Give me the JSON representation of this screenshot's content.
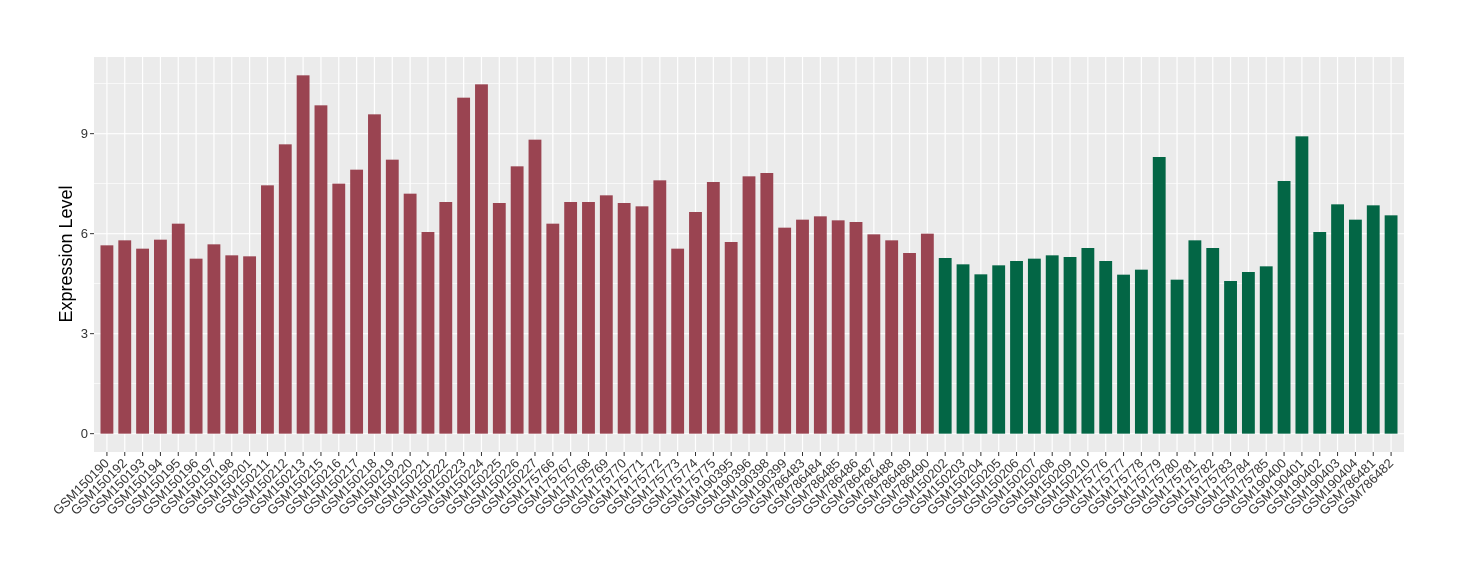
{
  "chart_data": {
    "type": "bar",
    "title": "",
    "xlabel": "",
    "ylabel": "Expression Level",
    "ylim": [
      -0.55,
      11.3
    ],
    "yticks": [
      0,
      3,
      6,
      9
    ],
    "grid": true,
    "legend": "none",
    "colors": {
      "group1": "#9A4451",
      "group2": "#036645",
      "panel": "#EBEBEB",
      "grid": "#FFFFFF"
    },
    "categories": [
      "GSM150190",
      "GSM150192",
      "GSM150193",
      "GSM150194",
      "GSM150195",
      "GSM150196",
      "GSM150197",
      "GSM150198",
      "GSM150201",
      "GSM150211",
      "GSM150212",
      "GSM150213",
      "GSM150215",
      "GSM150216",
      "GSM150217",
      "GSM150218",
      "GSM150219",
      "GSM150220",
      "GSM150221",
      "GSM150222",
      "GSM150223",
      "GSM150224",
      "GSM150225",
      "GSM150226",
      "GSM150227",
      "GSM175766",
      "GSM175767",
      "GSM175768",
      "GSM175769",
      "GSM175770",
      "GSM175771",
      "GSM175772",
      "GSM175773",
      "GSM175774",
      "GSM175775",
      "GSM190395",
      "GSM190396",
      "GSM190398",
      "GSM190399",
      "GSM786483",
      "GSM786484",
      "GSM786485",
      "GSM786486",
      "GSM786487",
      "GSM786488",
      "GSM786489",
      "GSM786490",
      "GSM150202",
      "GSM150203",
      "GSM150204",
      "GSM150205",
      "GSM150206",
      "GSM150207",
      "GSM150208",
      "GSM150209",
      "GSM150210",
      "GSM175776",
      "GSM175777",
      "GSM175778",
      "GSM175779",
      "GSM175780",
      "GSM175781",
      "GSM175782",
      "GSM175783",
      "GSM175784",
      "GSM175785",
      "GSM190400",
      "GSM190401",
      "GSM190402",
      "GSM190403",
      "GSM190404",
      "GSM786481",
      "GSM786482"
    ],
    "values": [
      5.65,
      5.8,
      5.55,
      5.82,
      6.3,
      5.25,
      5.68,
      5.35,
      5.32,
      7.45,
      8.68,
      10.75,
      9.85,
      7.5,
      7.92,
      9.58,
      8.22,
      7.2,
      6.05,
      6.95,
      10.08,
      10.48,
      6.92,
      8.02,
      8.82,
      6.3,
      6.95,
      6.95,
      7.15,
      6.92,
      6.82,
      7.6,
      5.55,
      6.65,
      7.55,
      5.75,
      7.72,
      7.82,
      6.18,
      6.42,
      6.52,
      6.4,
      6.35,
      5.98,
      5.8,
      5.42,
      6.0,
      5.27,
      5.08,
      4.78,
      5.05,
      5.18,
      5.25,
      5.35,
      5.3,
      5.57,
      5.18,
      4.77,
      4.92,
      8.3,
      4.62,
      5.8,
      5.57,
      4.58,
      4.85,
      5.02,
      7.58,
      8.92,
      6.05,
      6.88,
      6.42,
      6.85,
      6.55
    ],
    "groups": [
      1,
      1,
      1,
      1,
      1,
      1,
      1,
      1,
      1,
      1,
      1,
      1,
      1,
      1,
      1,
      1,
      1,
      1,
      1,
      1,
      1,
      1,
      1,
      1,
      1,
      1,
      1,
      1,
      1,
      1,
      1,
      1,
      1,
      1,
      1,
      1,
      1,
      1,
      1,
      1,
      1,
      1,
      1,
      1,
      1,
      1,
      1,
      2,
      2,
      2,
      2,
      2,
      2,
      2,
      2,
      2,
      2,
      2,
      2,
      2,
      2,
      2,
      2,
      2,
      2,
      2,
      2,
      2,
      2,
      2,
      2,
      2,
      2
    ]
  }
}
